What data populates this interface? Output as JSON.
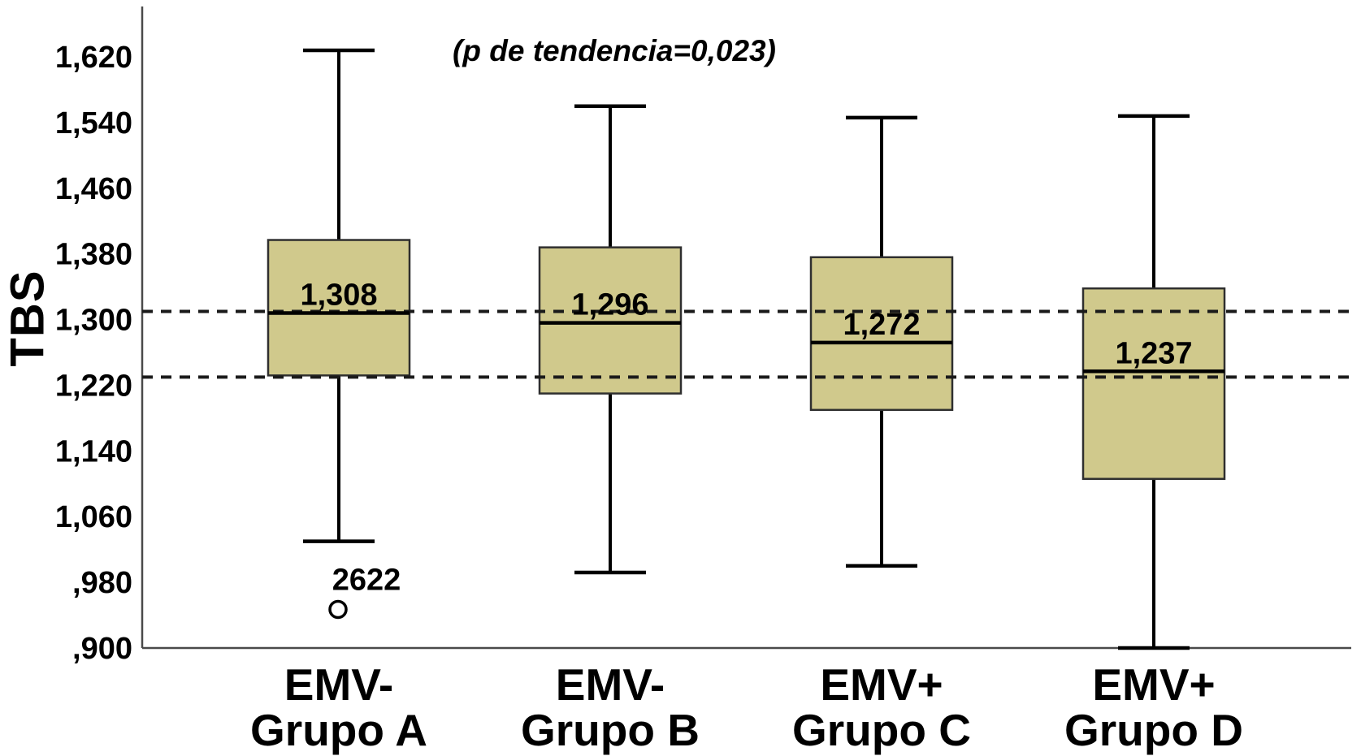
{
  "chart_data": {
    "type": "boxplot",
    "title": "",
    "ylabel": "TBS",
    "annotation": "(p de tendencia=0,023)",
    "y_axis": {
      "min": 0.9,
      "max": 1.682,
      "tick_values": [
        0.9,
        0.98,
        1.06,
        1.14,
        1.22,
        1.3,
        1.38,
        1.46,
        1.54,
        1.62
      ],
      "tick_labels": [
        ",900",
        ",980",
        "1,060",
        "1,140",
        "1,220",
        "1,300",
        "1,380",
        "1,460",
        "1,540",
        "1,620"
      ]
    },
    "reference_lines": {
      "style": "dashed",
      "values": [
        1.31,
        1.23
      ]
    },
    "groups": [
      {
        "label_line1": "EMV-",
        "label_line2": "Grupo A",
        "whisker_low": 1.03,
        "q1": 1.232,
        "median": 1.308,
        "median_label": "1,308",
        "q3": 1.397,
        "whisker_high": 1.628,
        "outliers": [
          {
            "value": 0.947,
            "case_label": "2622"
          }
        ]
      },
      {
        "label_line1": "EMV-",
        "label_line2": "Grupo B",
        "whisker_low": 0.992,
        "q1": 1.21,
        "median": 1.296,
        "median_label": "1,296",
        "q3": 1.388,
        "whisker_high": 1.56,
        "outliers": []
      },
      {
        "label_line1": "EMV+",
        "label_line2": "Grupo C",
        "whisker_low": 1.0,
        "q1": 1.19,
        "median": 1.272,
        "median_label": "1,272",
        "q3": 1.376,
        "whisker_high": 1.546,
        "outliers": []
      },
      {
        "label_line1": "EMV+",
        "label_line2": "Grupo D",
        "whisker_low": 0.9,
        "q1": 1.106,
        "median": 1.237,
        "median_label": "1,237",
        "q3": 1.338,
        "whisker_high": 1.548,
        "outliers": []
      }
    ],
    "layout_hints": {
      "grid": "off",
      "legend": "none",
      "reference_line_meaning": "dashed horizontal lines at TBS 1,310 and 1,230"
    },
    "colors": {
      "box_fill": "#d0c98c",
      "box_border": "#2f2f2f",
      "line": "#000000",
      "axis": "#4a4a4a",
      "background": "#ffffff"
    }
  }
}
